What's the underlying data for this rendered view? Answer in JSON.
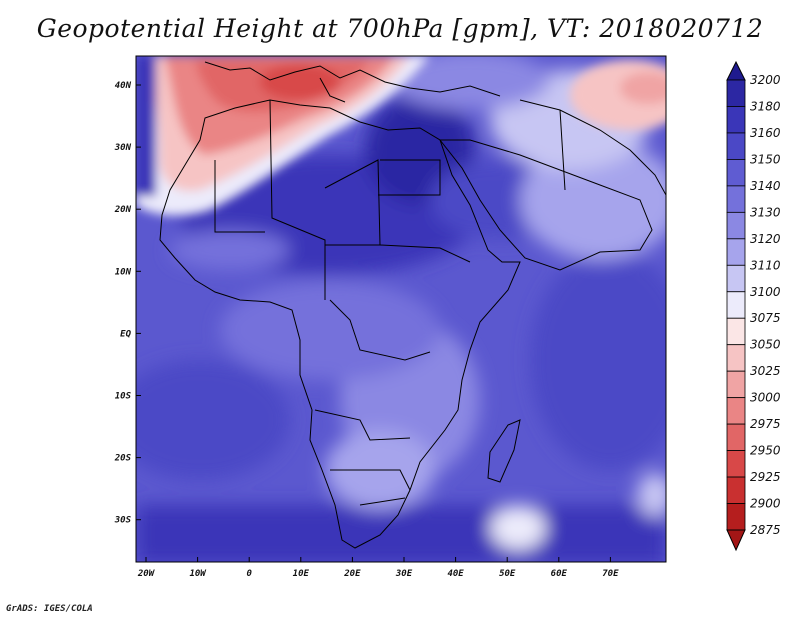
{
  "title": "Geopotential Height at 700hPa [gpm], VT: 2018020712",
  "credit": "GrADS: IGES/COLA",
  "lon_labels": [
    "20W",
    "10W",
    "0",
    "10E",
    "20E",
    "30E",
    "40E",
    "50E",
    "60E",
    "70E"
  ],
  "lat_labels": [
    "40N",
    "30N",
    "20N",
    "10N",
    "EQ",
    "10S",
    "20S",
    "30S"
  ],
  "colorbar": {
    "levels": [
      "3200",
      "3180",
      "3160",
      "3150",
      "3140",
      "3130",
      "3120",
      "3110",
      "3100",
      "3075",
      "3050",
      "3025",
      "3000",
      "2975",
      "2950",
      "2925",
      "2900",
      "2875"
    ],
    "colors": [
      "#1f1a8f",
      "#2c27a3",
      "#3a36b8",
      "#4b48c6",
      "#5f5cd2",
      "#7471db",
      "#8b88e3",
      "#a6a4ec",
      "#c7c6f3",
      "#ecebfb",
      "#fbe6e6",
      "#f6c4c4",
      "#f0a4a4",
      "#ea8585",
      "#e16666",
      "#d84848",
      "#c93030",
      "#b51e1e",
      "#a31616"
    ]
  }
}
